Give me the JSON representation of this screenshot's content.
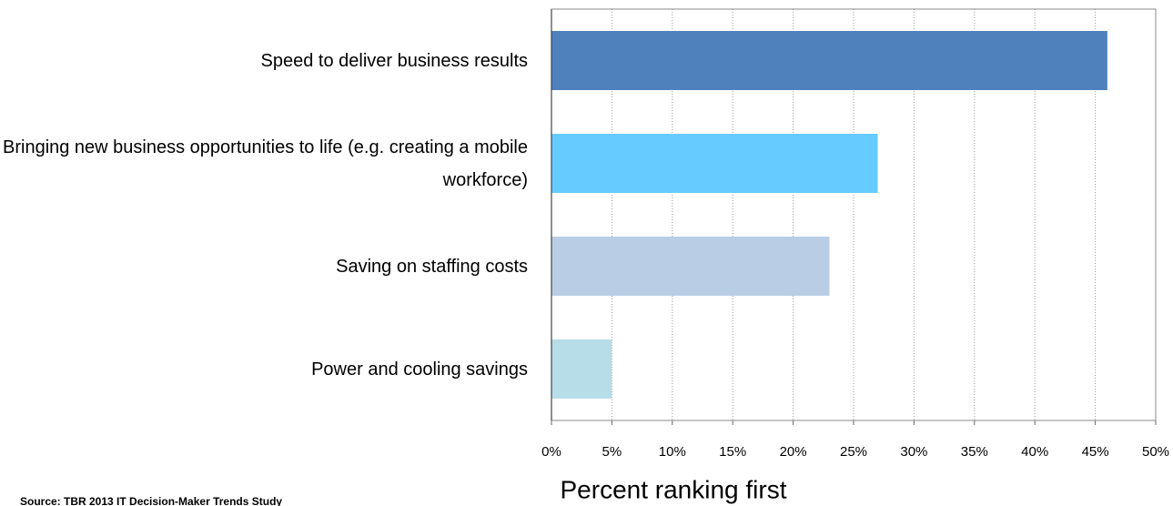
{
  "chart_data": {
    "type": "bar",
    "orientation": "horizontal",
    "categories": [
      "Speed to deliver business results",
      "Bringing new business opportunities to life (e.g. creating a mobile workforce)",
      "Saving on staffing costs",
      "Power and cooling savings"
    ],
    "values": [
      46,
      27,
      23,
      5
    ],
    "colors": [
      "#4f81bd",
      "#66ccff",
      "#b9cde5",
      "#b7dde8"
    ],
    "xlim": [
      0,
      50
    ],
    "xticks": [
      {
        "value": 0,
        "label": "0%"
      },
      {
        "value": 5,
        "label": "5%"
      },
      {
        "value": 10,
        "label": "10%"
      },
      {
        "value": 15,
        "label": "15%"
      },
      {
        "value": 20,
        "label": "20%"
      },
      {
        "value": 25,
        "label": "25%"
      },
      {
        "value": 30,
        "label": "30%"
      },
      {
        "value": 35,
        "label": "35%"
      },
      {
        "value": 40,
        "label": "40%"
      },
      {
        "value": 45,
        "label": "45%"
      },
      {
        "value": 50,
        "label": "50%"
      }
    ],
    "xlabel": "Percent ranking first",
    "source": "Source: TBR 2013 IT Decision-Maker Trends Study",
    "grid": true
  }
}
